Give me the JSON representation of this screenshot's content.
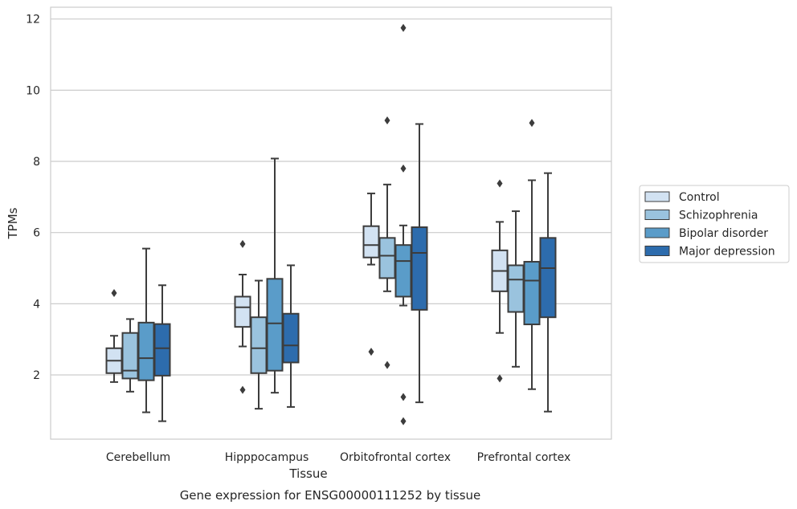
{
  "chart_data": {
    "type": "box",
    "title": "",
    "caption": "Gene expression for ENSG00000111252 by tissue",
    "xlabel": "Tissue",
    "ylabel": "TPMs",
    "ylim": [
      0.2,
      12.35
    ],
    "yticks": [
      2,
      4,
      6,
      8,
      10,
      12
    ],
    "grid": "horizontal",
    "legend_position": "right",
    "categories": [
      "Cerebellum",
      "Hipppocampus",
      "Orbitofrontal cortex",
      "Prefrontal cortex"
    ],
    "series": [
      {
        "name": "Control",
        "color": "#d2e2f2",
        "boxes": [
          {
            "whislo": 1.8,
            "q1": 2.05,
            "med": 2.4,
            "q3": 2.75,
            "whishi": 3.1,
            "fliers": [
              4.3
            ]
          },
          {
            "whislo": 2.8,
            "q1": 3.35,
            "med": 3.9,
            "q3": 4.2,
            "whishi": 4.82,
            "fliers": [
              1.58,
              5.68
            ]
          },
          {
            "whislo": 5.1,
            "q1": 5.3,
            "med": 5.65,
            "q3": 6.18,
            "whishi": 7.1,
            "fliers": [
              2.65
            ]
          },
          {
            "whislo": 3.18,
            "q1": 4.35,
            "med": 4.92,
            "q3": 5.5,
            "whishi": 6.3,
            "fliers": [
              1.9,
              7.38
            ]
          }
        ]
      },
      {
        "name": "Schizophrenia",
        "color": "#9ac3de",
        "boxes": [
          {
            "whislo": 1.53,
            "q1": 1.9,
            "med": 2.12,
            "q3": 3.18,
            "whishi": 3.57,
            "fliers": []
          },
          {
            "whislo": 1.05,
            "q1": 2.05,
            "med": 2.75,
            "q3": 3.62,
            "whishi": 4.65,
            "fliers": []
          },
          {
            "whislo": 4.35,
            "q1": 4.72,
            "med": 5.35,
            "q3": 5.85,
            "whishi": 7.35,
            "fliers": [
              2.28,
              9.15
            ]
          },
          {
            "whislo": 2.23,
            "q1": 3.77,
            "med": 4.68,
            "q3": 5.08,
            "whishi": 6.6,
            "fliers": []
          }
        ]
      },
      {
        "name": "Bipolar disorder",
        "color": "#5a9cc9",
        "boxes": [
          {
            "whislo": 0.95,
            "q1": 1.85,
            "med": 2.47,
            "q3": 3.47,
            "whishi": 5.55,
            "fliers": []
          },
          {
            "whislo": 1.5,
            "q1": 2.12,
            "med": 3.45,
            "q3": 4.7,
            "whishi": 8.08,
            "fliers": []
          },
          {
            "whislo": 3.95,
            "q1": 4.2,
            "med": 5.2,
            "q3": 5.65,
            "whishi": 6.2,
            "fliers": [
              0.7,
              1.38,
              7.8,
              11.75
            ]
          },
          {
            "whislo": 1.6,
            "q1": 3.42,
            "med": 4.65,
            "q3": 5.18,
            "whishi": 7.47,
            "fliers": [
              9.08
            ]
          }
        ]
      },
      {
        "name": "Major depression",
        "color": "#2d6cad",
        "boxes": [
          {
            "whislo": 0.7,
            "q1": 1.98,
            "med": 2.75,
            "q3": 3.43,
            "whishi": 4.52,
            "fliers": []
          },
          {
            "whislo": 1.1,
            "q1": 2.35,
            "med": 2.83,
            "q3": 3.72,
            "whishi": 5.08,
            "fliers": []
          },
          {
            "whislo": 1.23,
            "q1": 3.83,
            "med": 5.43,
            "q3": 6.15,
            "whishi": 9.05,
            "fliers": []
          },
          {
            "whislo": 0.97,
            "q1": 3.62,
            "med": 5.0,
            "q3": 5.85,
            "whishi": 7.67,
            "fliers": []
          }
        ]
      }
    ]
  }
}
